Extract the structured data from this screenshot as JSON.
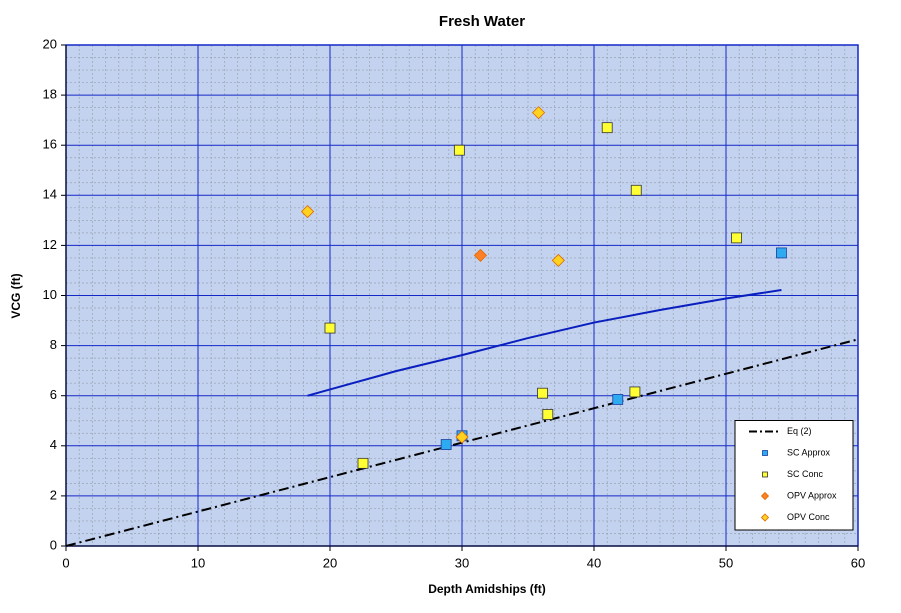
{
  "chart_data": {
    "type": "scatter",
    "title": "Fresh Water",
    "x_label": "Depth Amidships  (ft)",
    "y_label": "VCG  (ft)",
    "xlim": [
      0,
      60
    ],
    "xticks": [
      0,
      10,
      20,
      30,
      40,
      50,
      60
    ],
    "ylim": [
      0,
      20
    ],
    "yticks": [
      0,
      2,
      4,
      6,
      8,
      10,
      12,
      14,
      16,
      18,
      20
    ],
    "grid": true,
    "legend": "lower right",
    "series": [
      {
        "name": "Eq (2)",
        "style": "dash-dot",
        "color": "#000000",
        "x": [
          0,
          60
        ],
        "values": [
          0,
          8.25
        ]
      },
      {
        "style": "line",
        "color": "#0a1fbf",
        "x": [
          18.3,
          20,
          25,
          30,
          35,
          40,
          45,
          50,
          54.2
        ],
        "values": [
          6.0,
          6.25,
          6.98,
          7.62,
          8.3,
          8.92,
          9.42,
          9.88,
          10.22
        ]
      },
      {
        "name": "SC Approx",
        "marker": "square",
        "color": "#2eaaf0",
        "x": [
          28.8,
          30,
          41.8,
          54.2
        ],
        "values": [
          4.05,
          4.4,
          5.85,
          11.7
        ]
      },
      {
        "name": "SC Conc",
        "marker": "square",
        "color": "#ffff33",
        "x": [
          20,
          22.5,
          29.8,
          36.1,
          36.5,
          41,
          43.2,
          43.1,
          50.8
        ],
        "values": [
          8.7,
          3.3,
          15.8,
          6.1,
          5.25,
          16.7,
          14.2,
          6.15,
          12.3
        ]
      },
      {
        "name": "OPV Approx",
        "marker": "diamond",
        "color": "#ff7f27",
        "x": [
          31.4
        ],
        "values": [
          11.6
        ]
      },
      {
        "name": "OPV Conc",
        "marker": "diamond",
        "color": "#ffd21f",
        "x": [
          18.3,
          35.8,
          37.3,
          30
        ],
        "values": [
          13.35,
          17.3,
          11.4,
          4.35
        ]
      }
    ]
  }
}
